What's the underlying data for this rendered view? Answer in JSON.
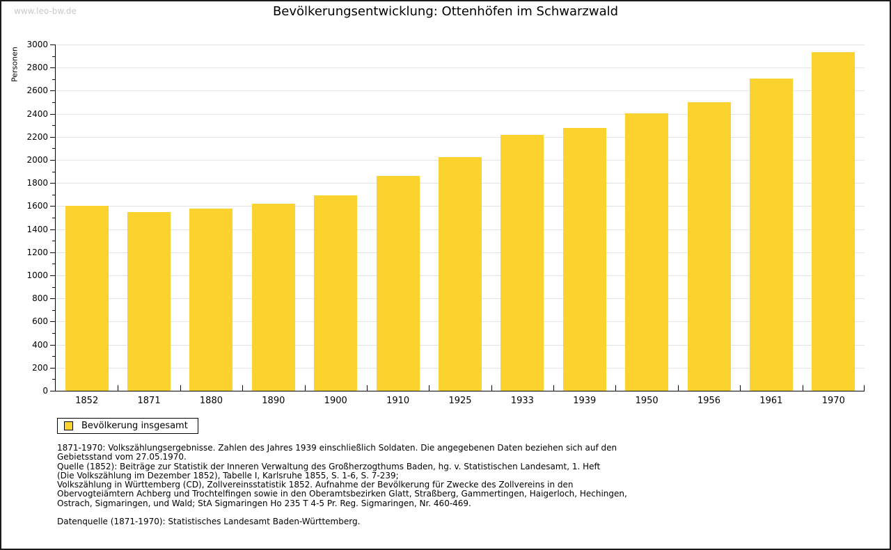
{
  "watermark": "www.leo-bw.de",
  "title": "Bevölkerungsentwicklung: Ottenhöfen im Schwarzwald",
  "chart_data": {
    "type": "bar",
    "title": "Bevölkerungsentwicklung: Ottenhöfen im Schwarzwald",
    "categories": [
      "1852",
      "1871",
      "1880",
      "1890",
      "1900",
      "1910",
      "1925",
      "1933",
      "1939",
      "1950",
      "1956",
      "1961",
      "1970"
    ],
    "values": [
      1600,
      1550,
      1580,
      1620,
      1690,
      1860,
      2025,
      2215,
      2275,
      2405,
      2500,
      2705,
      2935
    ],
    "series_name": "Bevölkerung insgesamt",
    "xlabel": "",
    "ylabel": "Personen",
    "ylim": [
      0,
      3000
    ],
    "ytick_step": 200,
    "yminor_step": 100,
    "grid": true,
    "legend_position": "bottom-left",
    "bar_color": "#FCD32E"
  },
  "legend": {
    "label": "Bevölkerung insgesamt",
    "swatch_color": "#FCD32E"
  },
  "footer": {
    "lines": [
      "1871-1970: Volkszählungsergebnisse. Zahlen des Jahres 1939 einschließlich Soldaten. Die angegebenen Daten beziehen sich auf den",
      "Gebietsstand vom 27.05.1970.",
      "Quelle (1852): Beiträge zur Statistik der Inneren Verwaltung des Großherzogthums Baden, hg. v. Statistischen Landesamt, 1. Heft",
      "(Die Volkszählung im Dezember 1852), Tabelle I, Karlsruhe 1855, S. 1-6, S. 7-239;",
      "Volkszählung in Württemberg (CD), Zollvereinsstatistik 1852. Aufnahme der Bevölkerung für Zwecke des Zollvereins in den",
      "Obervogteiämtern Achberg und Trochtelfingen sowie in den Oberamtsbezirken Glatt, Straßberg, Gammertingen, Haigerloch, Hechingen,",
      "Ostrach, Sigmaringen, und Wald; StA Sigmaringen Ho 235 T 4-5 Pr. Reg. Sigmaringen, Nr. 460-469."
    ],
    "datasource": "Datenquelle (1871-1970): Statistisches Landesamt Baden-Württemberg."
  }
}
